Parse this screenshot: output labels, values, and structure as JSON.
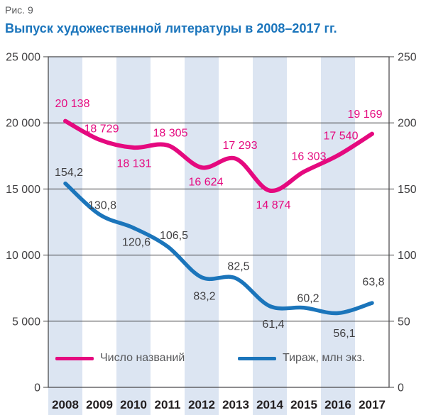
{
  "figure_label": "Рис. 9",
  "title": "Выпуск художественной литературы в 2008–2017 гг.",
  "colors": {
    "title_blue": "#1b75bc",
    "stripe": "#dce5f2",
    "grid": "#414042",
    "axis_text": "#414042",
    "year_text": "#231f20",
    "legend_text": "#57585b",
    "pink": "#e5097f",
    "blue": "#1b75bb",
    "blue_label_text": "#414042"
  },
  "chart_data": {
    "type": "line",
    "title": "Выпуск художественной литературы в 2008–2017 гг.",
    "categories": [
      "2008",
      "2009",
      "2010",
      "2011",
      "2012",
      "2013",
      "2014",
      "2015",
      "2016",
      "2017"
    ],
    "grid": true,
    "legend_position": "bottom-inside",
    "striped_columns": [
      0,
      2,
      4,
      6,
      8
    ],
    "left_axis": {
      "min": 0,
      "max": 25000,
      "ticks": [
        {
          "value": 25000,
          "label": "25 000"
        },
        {
          "value": 20000,
          "label": "20 000"
        },
        {
          "value": 15000,
          "label": "15 000"
        },
        {
          "value": 10000,
          "label": "10 000"
        },
        {
          "value": 5000,
          "label": "5 000"
        },
        {
          "value": 0,
          "label": "0"
        }
      ]
    },
    "right_axis": {
      "min": 0,
      "max": 250,
      "ticks": [
        {
          "value": 250,
          "label": "250"
        },
        {
          "value": 200,
          "label": "200"
        },
        {
          "value": 150,
          "label": "150"
        },
        {
          "value": 100,
          "label": "100"
        },
        {
          "value": 50,
          "label": "50"
        },
        {
          "value": 0,
          "label": "0"
        }
      ]
    },
    "series": [
      {
        "name": "Число названий",
        "axis": "left",
        "color": "#e5097f",
        "label_color": "#e5097f",
        "stroke_width": 6,
        "values": [
          20138,
          18729,
          18131,
          18305,
          16624,
          17293,
          14874,
          16303,
          17540,
          19169
        ],
        "labels": [
          "20 138",
          "18 729",
          "18 131",
          "18 305",
          "16 624",
          "17 293",
          "14 874",
          "16 303",
          "17 540",
          "19 169"
        ],
        "label_offsets": [
          [
            10,
            -25
          ],
          [
            3,
            -16
          ],
          [
            1,
            22
          ],
          [
            4,
            -18
          ],
          [
            6,
            20
          ],
          [
            6,
            -19
          ],
          [
            5,
            20
          ],
          [
            7,
            -22
          ],
          [
            4,
            -28
          ],
          [
            -10,
            -28
          ]
        ]
      },
      {
        "name": "Тираж, млн экз.",
        "axis": "right",
        "color": "#1b75bb",
        "label_color": "#414042",
        "stroke_width": 5.5,
        "values": [
          154.2,
          130.8,
          120.6,
          106.5,
          83.2,
          82.5,
          61.4,
          60.2,
          56.1,
          63.8
        ],
        "labels": [
          "154,2",
          "130,8",
          "120,6",
          "106,5",
          "83,2",
          "82,5",
          "61,4",
          "60,2",
          "56,1",
          "63,8"
        ],
        "label_offsets": [
          [
            5,
            -16
          ],
          [
            4,
            -13
          ],
          [
            4,
            20
          ],
          [
            9,
            -16
          ],
          [
            4,
            26
          ],
          [
            4,
            -17
          ],
          [
            5,
            25
          ],
          [
            6,
            -14
          ],
          [
            9,
            28
          ],
          [
            2,
            -30
          ]
        ]
      }
    ]
  }
}
